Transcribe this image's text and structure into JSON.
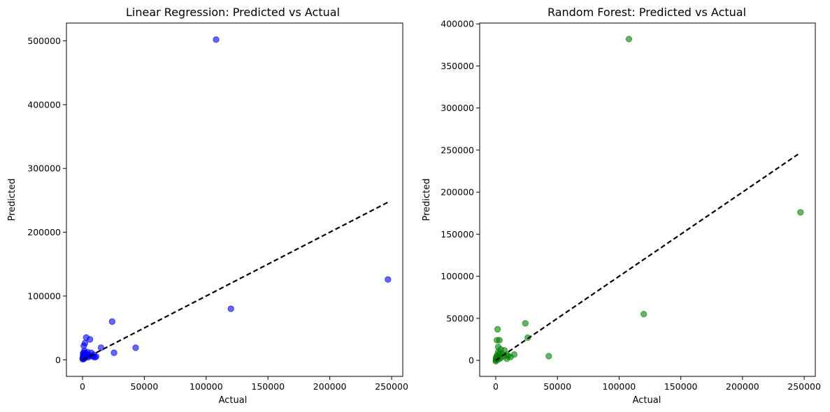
{
  "chart_data": [
    {
      "type": "scatter",
      "title": "Linear Regression: Predicted vs Actual",
      "xlabel": "Actual",
      "ylabel": "Predicted",
      "xlim": [
        -13000,
        259000
      ],
      "ylim": [
        -26000,
        528000
      ],
      "xticks": [
        0,
        50000,
        100000,
        150000,
        200000,
        250000
      ],
      "xtick_labels": [
        "0",
        "50000",
        "100000",
        "150000",
        "200000",
        "250000"
      ],
      "yticks": [
        0,
        100000,
        200000,
        300000,
        400000,
        500000
      ],
      "ytick_labels": [
        "0",
        "100000",
        "200000",
        "300000",
        "400000",
        "500000"
      ],
      "grid": false,
      "point_color": "#0000ff",
      "point_alpha": 0.6,
      "reference_line": {
        "x": [
          0,
          247000
        ],
        "y": [
          0,
          247000
        ],
        "style": "dashed",
        "color": "#000000"
      },
      "points": [
        [
          108000,
          502000
        ],
        [
          247000,
          126000
        ],
        [
          120000,
          80000
        ],
        [
          24000,
          60000
        ],
        [
          43000,
          19000
        ],
        [
          25500,
          11000
        ],
        [
          15000,
          19000
        ],
        [
          3000,
          35000
        ],
        [
          6000,
          32000
        ],
        [
          2000,
          26000
        ],
        [
          1000,
          22000
        ],
        [
          1500,
          14000
        ],
        [
          500,
          10000
        ],
        [
          4000,
          12000
        ],
        [
          7000,
          11000
        ],
        [
          9000,
          8000
        ],
        [
          8500,
          5000
        ],
        [
          11000,
          5000
        ],
        [
          10000,
          4000
        ],
        [
          6000,
          6000
        ],
        [
          5000,
          7000
        ],
        [
          3000,
          9000
        ],
        [
          2500,
          5000
        ],
        [
          2000,
          3000
        ],
        [
          1500,
          8000
        ],
        [
          800,
          6000
        ],
        [
          400,
          4000
        ],
        [
          300,
          2000
        ],
        [
          200,
          1000
        ],
        [
          1000,
          1500
        ],
        [
          3500,
          6000
        ],
        [
          4500,
          4000
        ],
        [
          1200,
          11000
        ],
        [
          600,
          7000
        ]
      ]
    },
    {
      "type": "scatter",
      "title": "Random Forest: Predicted vs Actual",
      "xlabel": "Actual",
      "ylabel": "Predicted",
      "xlim": [
        -13000,
        259000
      ],
      "ylim": [
        -19000,
        401000
      ],
      "xticks": [
        0,
        50000,
        100000,
        150000,
        200000,
        250000
      ],
      "xtick_labels": [
        "0",
        "50000",
        "100000",
        "150000",
        "200000",
        "250000"
      ],
      "yticks": [
        0,
        50000,
        100000,
        150000,
        200000,
        250000,
        300000,
        350000,
        400000
      ],
      "ytick_labels": [
        "0",
        "50000",
        "100000",
        "150000",
        "200000",
        "250000",
        "300000",
        "350000",
        "400000"
      ],
      "grid": false,
      "point_color": "#008000",
      "point_alpha": 0.6,
      "reference_line": {
        "x": [
          0,
          245000
        ],
        "y": [
          0,
          245000
        ],
        "style": "dashed",
        "color": "#000000"
      },
      "points": [
        [
          108000,
          382000
        ],
        [
          247000,
          176000
        ],
        [
          120000,
          55000
        ],
        [
          24000,
          44000
        ],
        [
          26000,
          27000
        ],
        [
          43000,
          5000
        ],
        [
          15000,
          7000
        ],
        [
          1500,
          37000
        ],
        [
          1000,
          24000
        ],
        [
          3000,
          24000
        ],
        [
          2000,
          16000
        ],
        [
          4000,
          13000
        ],
        [
          7000,
          12000
        ],
        [
          9000,
          7000
        ],
        [
          10000,
          5000
        ],
        [
          9000,
          2000
        ],
        [
          6000,
          5000
        ],
        [
          3000,
          8000
        ],
        [
          2000,
          10000
        ],
        [
          1000,
          6000
        ],
        [
          500,
          4000
        ],
        [
          300,
          2000
        ],
        [
          200,
          500
        ],
        [
          100,
          -1000
        ],
        [
          800,
          1000
        ],
        [
          1500,
          3000
        ],
        [
          2500,
          1500
        ],
        [
          4000,
          3000
        ],
        [
          5000,
          8000
        ],
        [
          12000,
          4000
        ]
      ]
    }
  ]
}
